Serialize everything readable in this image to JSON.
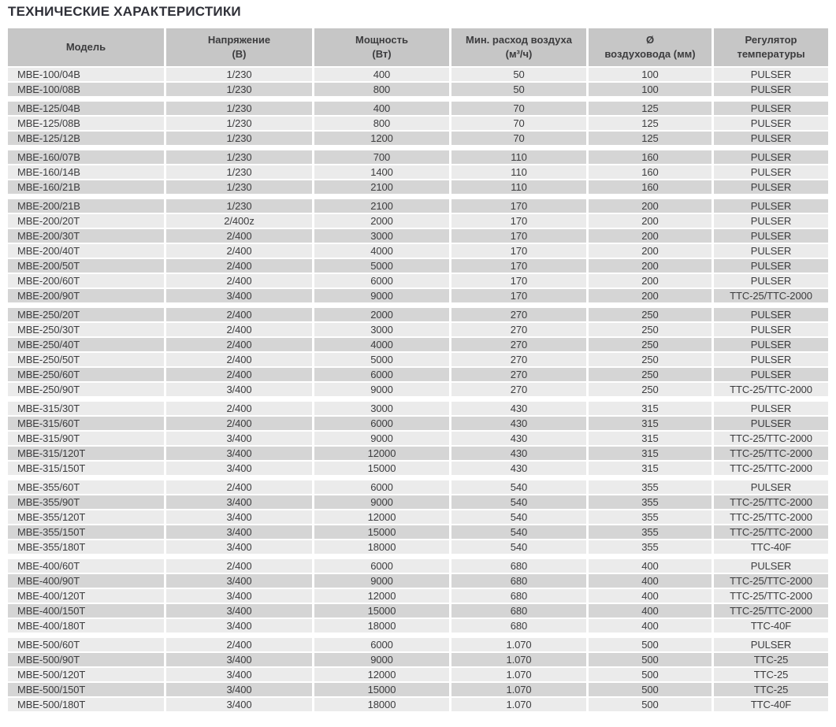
{
  "title": "ТЕХНИЧЕСКИЕ ХАРАКТЕРИСТИКИ",
  "colors": {
    "header_bg": "#c6c6c6",
    "row_dark": "#d5d5d5",
    "row_light": "#ebebeb",
    "text": "#3c3c3e",
    "title_text": "#2f3038"
  },
  "table": {
    "columns": [
      {
        "id": "model",
        "label_lines": [
          "Модель",
          ""
        ]
      },
      {
        "id": "voltage",
        "label_lines": [
          "Напряжение",
          "(В)"
        ]
      },
      {
        "id": "power",
        "label_lines": [
          "Мощность",
          "(Вт)"
        ]
      },
      {
        "id": "airflow",
        "label_lines": [
          "Мин. расход воздуха",
          "(м³/ч)"
        ]
      },
      {
        "id": "diameter",
        "label_lines": [
          "Ø",
          "воздуховода (мм)"
        ]
      },
      {
        "id": "regulator",
        "label_lines": [
          "Регулятор",
          "температуры"
        ]
      }
    ],
    "groups": [
      {
        "rows": [
          {
            "shade": "light",
            "cells": [
              "MBE-100/04B",
              "1/230",
              "400",
              "50",
              "100",
              "PULSER"
            ]
          },
          {
            "shade": "dark",
            "cells": [
              "MBE-100/08B",
              "1/230",
              "800",
              "50",
              "100",
              "PULSER"
            ]
          }
        ]
      },
      {
        "rows": [
          {
            "shade": "dark",
            "cells": [
              "MBE-125/04B",
              "1/230",
              "400",
              "70",
              "125",
              "PULSER"
            ]
          },
          {
            "shade": "light",
            "cells": [
              "MBE-125/08B",
              "1/230",
              "800",
              "70",
              "125",
              "PULSER"
            ]
          },
          {
            "shade": "dark",
            "cells": [
              "MBE-125/12B",
              "1/230",
              "1200",
              "70",
              "125",
              "PULSER"
            ]
          }
        ]
      },
      {
        "rows": [
          {
            "shade": "dark",
            "cells": [
              "MBE-160/07B",
              "1/230",
              "700",
              "110",
              "160",
              "PULSER"
            ]
          },
          {
            "shade": "light",
            "cells": [
              "MBE-160/14B",
              "1/230",
              "1400",
              "110",
              "160",
              "PULSER"
            ]
          },
          {
            "shade": "dark",
            "cells": [
              "MBE-160/21B",
              "1/230",
              "2100",
              "110",
              "160",
              "PULSER"
            ]
          }
        ]
      },
      {
        "rows": [
          {
            "shade": "dark",
            "cells": [
              "MBE-200/21B",
              "1/230",
              "2100",
              "170",
              "200",
              "PULSER"
            ]
          },
          {
            "shade": "light",
            "cells": [
              "MBE-200/20T",
              "2/400z",
              "2000",
              "170",
              "200",
              "PULSER"
            ]
          },
          {
            "shade": "dark",
            "cells": [
              "MBE-200/30T",
              "2/400",
              "3000",
              "170",
              "200",
              "PULSER"
            ]
          },
          {
            "shade": "light",
            "cells": [
              "MBE-200/40T",
              "2/400",
              "4000",
              "170",
              "200",
              "PULSER"
            ]
          },
          {
            "shade": "dark",
            "cells": [
              "MBE-200/50T",
              "2/400",
              "5000",
              "170",
              "200",
              "PULSER"
            ]
          },
          {
            "shade": "light",
            "cells": [
              "MBE-200/60T",
              "2/400",
              "6000",
              "170",
              "200",
              "PULSER"
            ]
          },
          {
            "shade": "dark",
            "cells": [
              "MBE-200/90T",
              "3/400",
              "9000",
              "170",
              "200",
              "TTC-25/TTC-2000"
            ]
          }
        ]
      },
      {
        "rows": [
          {
            "shade": "dark",
            "cells": [
              "MBE-250/20T",
              "2/400",
              "2000",
              "270",
              "250",
              "PULSER"
            ]
          },
          {
            "shade": "light",
            "cells": [
              "MBE-250/30T",
              "2/400",
              "3000",
              "270",
              "250",
              "PULSER"
            ]
          },
          {
            "shade": "dark",
            "cells": [
              "MBE-250/40T",
              "2/400",
              "4000",
              "270",
              "250",
              "PULSER"
            ]
          },
          {
            "shade": "light",
            "cells": [
              "MBE-250/50T",
              "2/400",
              "5000",
              "270",
              "250",
              "PULSER"
            ]
          },
          {
            "shade": "dark",
            "cells": [
              "MBE-250/60T",
              "2/400",
              "6000",
              "270",
              "250",
              "PULSER"
            ]
          },
          {
            "shade": "light",
            "cells": [
              "MBE-250/90T",
              "3/400",
              "9000",
              "270",
              "250",
              "TTC-25/TTC-2000"
            ]
          }
        ]
      },
      {
        "rows": [
          {
            "shade": "light",
            "cells": [
              "MBE-315/30T",
              "2/400",
              "3000",
              "430",
              "315",
              "PULSER"
            ]
          },
          {
            "shade": "dark",
            "cells": [
              "MBE-315/60T",
              "2/400",
              "6000",
              "430",
              "315",
              "PULSER"
            ]
          },
          {
            "shade": "light",
            "cells": [
              "MBE-315/90T",
              "3/400",
              "9000",
              "430",
              "315",
              "TTC-25/TTC-2000"
            ]
          },
          {
            "shade": "dark",
            "cells": [
              "MBE-315/120T",
              "3/400",
              "12000",
              "430",
              "315",
              "TTC-25/TTC-2000"
            ]
          },
          {
            "shade": "light",
            "cells": [
              "MBE-315/150T",
              "3/400",
              "15000",
              "430",
              "315",
              "TTC-25/TTC-2000"
            ]
          }
        ]
      },
      {
        "rows": [
          {
            "shade": "light",
            "cells": [
              "MBE-355/60T",
              "2/400",
              "6000",
              "540",
              "355",
              "PULSER"
            ]
          },
          {
            "shade": "dark",
            "cells": [
              "MBE-355/90T",
              "3/400",
              "9000",
              "540",
              "355",
              "TTC-25/TTC-2000"
            ]
          },
          {
            "shade": "light",
            "cells": [
              "MBE-355/120T",
              "3/400",
              "12000",
              "540",
              "355",
              "TTC-25/TTC-2000"
            ]
          },
          {
            "shade": "dark",
            "cells": [
              "MBE-355/150T",
              "3/400",
              "15000",
              "540",
              "355",
              "TTC-25/TTC-2000"
            ]
          },
          {
            "shade": "light",
            "cells": [
              "MBE-355/180T",
              "3/400",
              "18000",
              "540",
              "355",
              "TTC-40F"
            ]
          }
        ]
      },
      {
        "rows": [
          {
            "shade": "light",
            "cells": [
              "MBE-400/60T",
              "2/400",
              "6000",
              "680",
              "400",
              "PULSER"
            ]
          },
          {
            "shade": "dark",
            "cells": [
              "MBE-400/90T",
              "3/400",
              "9000",
              "680",
              "400",
              "TTC-25/TTC-2000"
            ]
          },
          {
            "shade": "light",
            "cells": [
              "MBE-400/120T",
              "3/400",
              "12000",
              "680",
              "400",
              "TTC-25/TTC-2000"
            ]
          },
          {
            "shade": "dark",
            "cells": [
              "MBE-400/150T",
              "3/400",
              "15000",
              "680",
              "400",
              "TTC-25/TTC-2000"
            ]
          },
          {
            "shade": "light",
            "cells": [
              "MBE-400/180T",
              "3/400",
              "18000",
              "680",
              "400",
              "TTC-40F"
            ]
          }
        ]
      },
      {
        "rows": [
          {
            "shade": "light",
            "cells": [
              "MBE-500/60T",
              "2/400",
              "6000",
              "1.070",
              "500",
              "PULSER"
            ]
          },
          {
            "shade": "dark",
            "cells": [
              "MBE-500/90T",
              "3/400",
              "9000",
              "1.070",
              "500",
              "TTC-25"
            ]
          },
          {
            "shade": "light",
            "cells": [
              "MBE-500/120T",
              "3/400",
              "12000",
              "1.070",
              "500",
              "TTC-25"
            ]
          },
          {
            "shade": "dark",
            "cells": [
              "MBE-500/150T",
              "3/400",
              "15000",
              "1.070",
              "500",
              "TTC-25"
            ]
          },
          {
            "shade": "light",
            "cells": [
              "MBE-500/180T",
              "3/400",
              "18000",
              "1.070",
              "500",
              "TTC-40F"
            ]
          }
        ]
      }
    ]
  }
}
